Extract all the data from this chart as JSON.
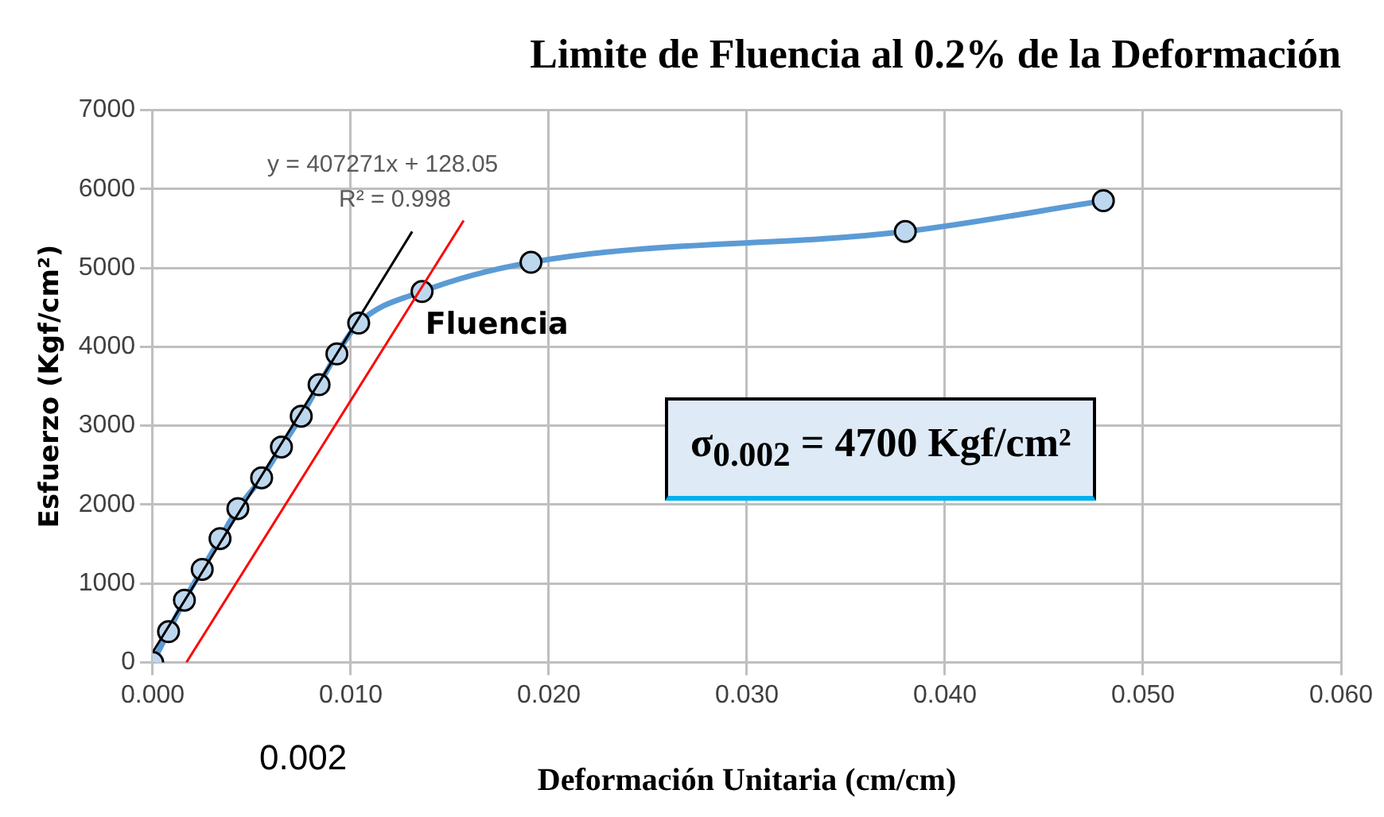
{
  "chart_data": {
    "type": "line",
    "title": "Limite de Fluencia al 0.2% de la Deformación",
    "xlabel": "Deformación Unitaria (cm/cm)",
    "ylabel": "Esfuerzo (Kgf/cm²)",
    "series": [
      {
        "type": "line",
        "color": "#5b9bd5",
        "marker": "circle",
        "x": [
          0,
          0.0008,
          0.0016,
          0.0025,
          0.0034,
          0.0043,
          0.0055,
          0.0065,
          0.0075,
          0.0084,
          0.0093,
          0.0104,
          0.0136,
          0.0191,
          0.038,
          0.048
        ],
        "values": [
          0,
          390,
          790,
          1180,
          1570,
          1950,
          2340,
          2730,
          3120,
          3520,
          3910,
          4300,
          4700,
          5070,
          5460,
          5850
        ]
      },
      {
        "type": "line",
        "color": "#000000",
        "marker": "none",
        "x": [
          0,
          0.0131
        ],
        "values": [
          130,
          5460
        ]
      },
      {
        "type": "line",
        "color": "#ff0000",
        "marker": "none",
        "x": [
          0.0017,
          0.0157
        ],
        "values": [
          0,
          5600
        ]
      }
    ],
    "xlim": [
      0,
      0.06
    ],
    "xticks": [
      {
        "value": 0,
        "label": "0.000"
      },
      {
        "value": 0.01,
        "label": "0.010"
      },
      {
        "value": 0.02,
        "label": "0.020"
      },
      {
        "value": 0.03,
        "label": "0.030"
      },
      {
        "value": 0.04,
        "label": "0.040"
      },
      {
        "value": 0.05,
        "label": "0.050"
      },
      {
        "value": 0.06,
        "label": "0.060"
      }
    ],
    "ylim": [
      0,
      7000
    ],
    "yticks": [
      0,
      1000,
      2000,
      3000,
      4000,
      5000,
      6000,
      7000
    ],
    "grid": true,
    "legend": false,
    "annotations": [
      "y = 407271x + 128.05",
      "R² = 0.998",
      {
        "text": "Fluencia",
        "x": 0.0136,
        "y": 4700
      },
      "0.002",
      "σ$_{0.002}$ = 4700  Kgf/cm²"
    ]
  }
}
